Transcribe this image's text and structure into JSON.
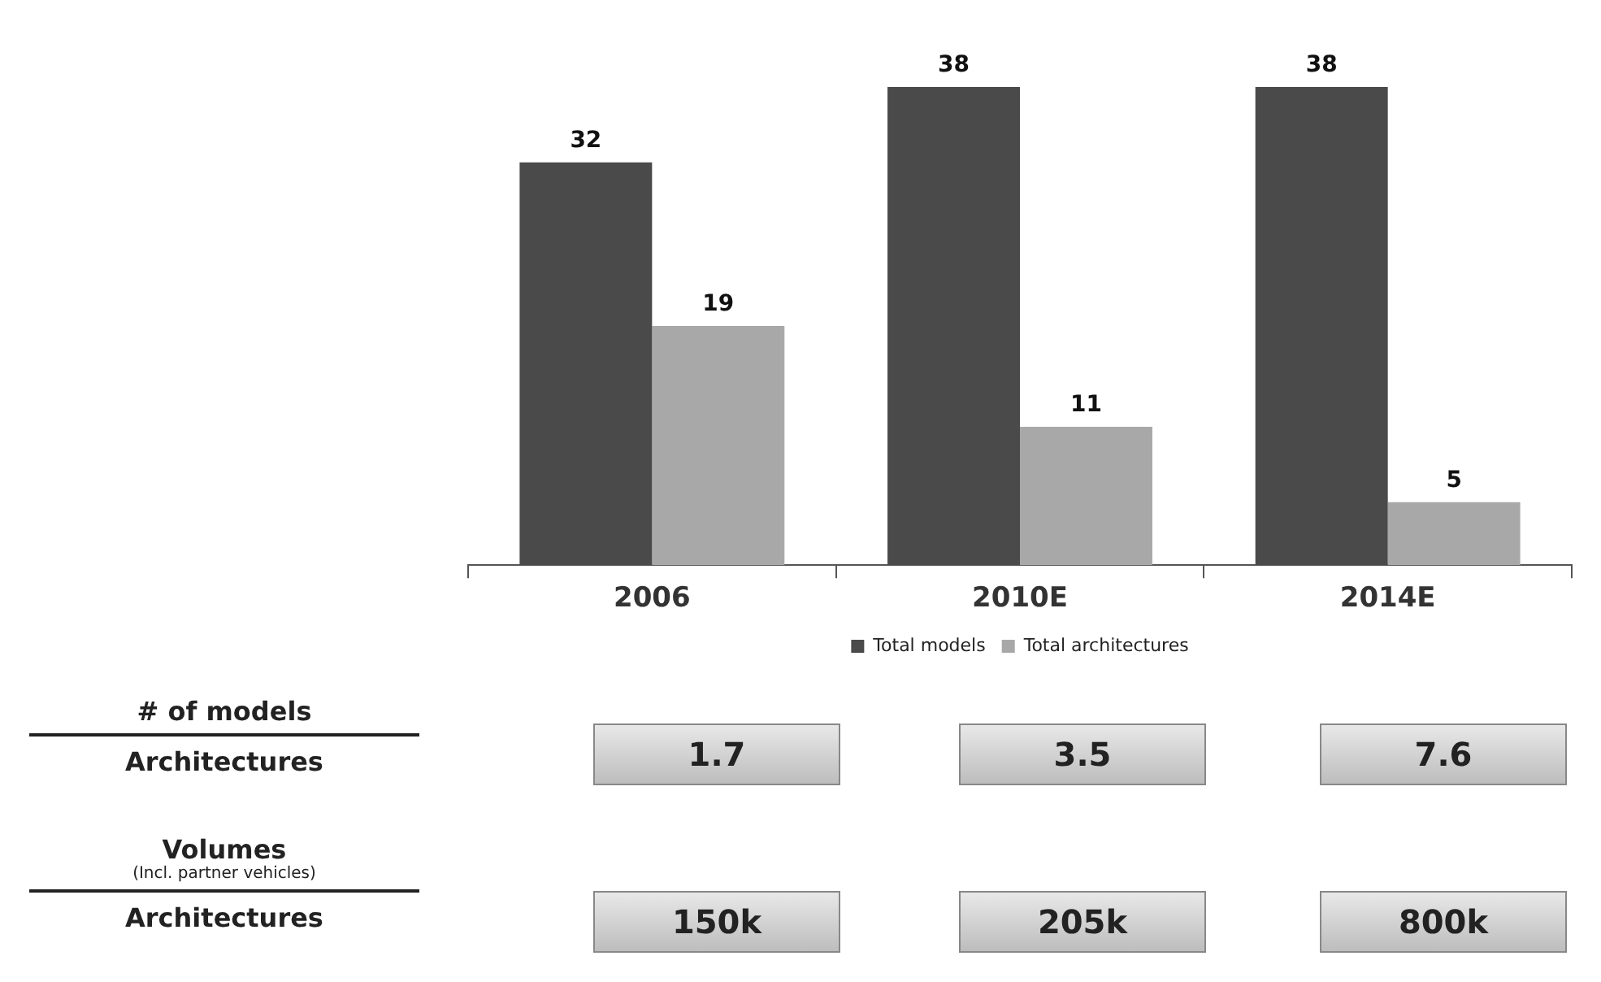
{
  "chart_data": {
    "type": "bar",
    "categories": [
      "2006",
      "2010E",
      "2014E"
    ],
    "series": [
      {
        "name": "Total models",
        "color": "#4a4a4a",
        "values": [
          32,
          38,
          38
        ]
      },
      {
        "name": "Total architectures",
        "color": "#a8a8a8",
        "values": [
          19,
          11,
          5
        ]
      }
    ],
    "data_labels": true,
    "grid": false,
    "legend": "bottom",
    "tick_labels": "x",
    "annotations": [
      "# of models",
      "Architectures",
      "1.7",
      "3.5",
      "7.6",
      "Volumes",
      "(Incl. partner vehicles)",
      "Architectures",
      "150k",
      "205k",
      "800k"
    ]
  }
}
